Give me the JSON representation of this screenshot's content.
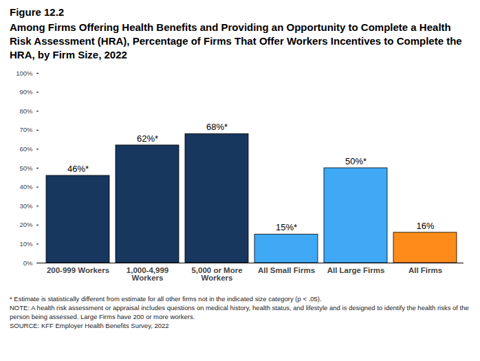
{
  "chart_data": {
    "type": "bar",
    "title": "Figure 12.2",
    "subtitle": "Among Firms Offering Health Benefits and Providing an Opportunity to Complete a Health Risk Assessment (HRA), Percentage of Firms That Offer Workers Incentives to Complete the HRA, by Firm Size, 2022",
    "categories": [
      "200-999 Workers",
      "1,000-4,999 Workers",
      "5,000 or More Workers",
      "All Small Firms",
      "All Large Firms",
      "All Firms"
    ],
    "values": [
      46,
      62,
      68,
      15,
      50,
      16
    ],
    "value_labels": [
      "46%*",
      "62%*",
      "68%*",
      "15%*",
      "50%*",
      "16%"
    ],
    "data_labels": true,
    "colors": [
      "#17375e",
      "#17375e",
      "#17375e",
      "#3fa9f5",
      "#3fa9f5",
      "#ff8c1a"
    ],
    "ylim": [
      0,
      100
    ],
    "yticks": [
      {
        "value": 0,
        "label": "0%"
      },
      {
        "value": 10,
        "label": "10%"
      },
      {
        "value": 20,
        "label": "20%"
      },
      {
        "value": 30,
        "label": "30%"
      },
      {
        "value": 40,
        "label": "40%"
      },
      {
        "value": 50,
        "label": "50%"
      },
      {
        "value": 60,
        "label": "60%"
      },
      {
        "value": 70,
        "label": "70%"
      },
      {
        "value": 80,
        "label": "80%"
      },
      {
        "value": 90,
        "label": "90%"
      },
      {
        "value": 100,
        "label": "100%"
      }
    ],
    "grid": false,
    "caption": [
      "* Estimate is statistically different from estimate for all other firms not in the indicated size category (p < .05).",
      "NOTE: A health risk assessment or appraisal includes questions on medical history, health status, and lifestyle and is designed to identify the health risks of the person being assessed. Large Firms have 200 or more workers.",
      "SOURCE: KFF Employer Health Benefits Survey, 2022"
    ]
  }
}
